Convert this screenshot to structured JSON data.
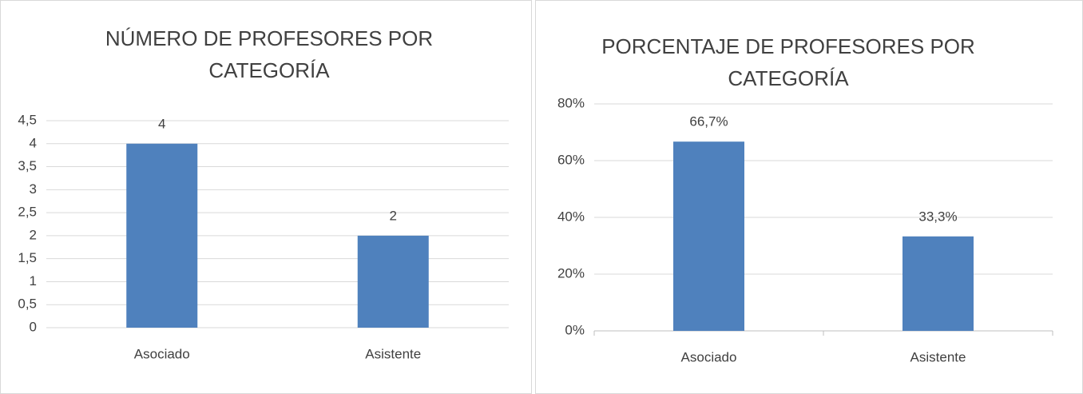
{
  "chart_data": [
    {
      "type": "bar",
      "title": "NÚMERO DE PROFESORES POR CATEGORÍA",
      "categories": [
        "Asociado",
        "Asistente"
      ],
      "values": [
        4,
        2
      ],
      "color": "#4f81bd",
      "ylim": [
        0,
        4.5
      ],
      "yticks": [
        0,
        {
          "value": 0.5,
          "label": "0,5"
        },
        1,
        {
          "value": 1.5,
          "label": "1,5"
        },
        2,
        {
          "value": 2.5,
          "label": "2,5"
        },
        3,
        {
          "value": 3.5,
          "label": "3,5"
        },
        4,
        {
          "value": 4.5,
          "label": "4,5"
        }
      ],
      "grid": true
    },
    {
      "type": "bar",
      "title": "PORCENTAJE DE PROFESORES POR CATEGORÍA",
      "categories": [
        "Asociado",
        "Asistente"
      ],
      "values": [
        66.7,
        33.3
      ],
      "value_labels": [
        "66,7%",
        "33,3%"
      ],
      "color": "#4f81bd",
      "ylim": [
        0,
        80
      ],
      "yticks": [
        {
          "value": 0,
          "label": "0%"
        },
        {
          "value": 20,
          "label": "20%"
        },
        {
          "value": 40,
          "label": "40%"
        },
        {
          "value": 60,
          "label": "60%"
        },
        {
          "value": 80,
          "label": "80%"
        }
      ],
      "grid": true
    }
  ]
}
